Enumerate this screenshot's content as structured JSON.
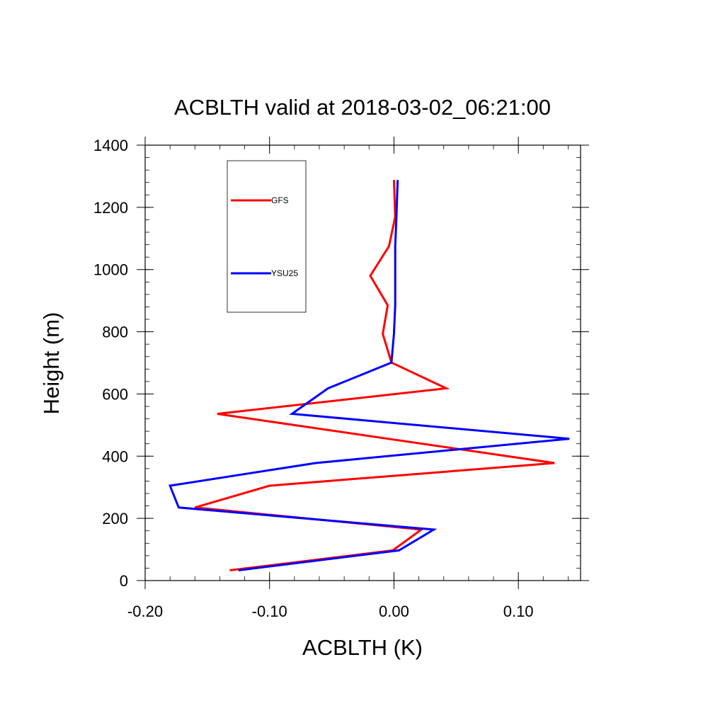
{
  "chart_data": {
    "type": "line",
    "title": "ACBLTH valid at 2018-03-02_06:21:00",
    "xlabel": "ACBLTH (K)",
    "ylabel": "Height (m)",
    "xlim": [
      -0.2,
      0.15
    ],
    "ylim": [
      0,
      1400
    ],
    "xticks": [
      -0.2,
      -0.1,
      0.0,
      0.1
    ],
    "xtick_labels": [
      "-0.20",
      "-0.10",
      "0.00",
      "0.10"
    ],
    "yticks": [
      0,
      200,
      400,
      600,
      800,
      1000,
      1200,
      1400
    ],
    "ytick_labels": [
      "0",
      "200",
      "400",
      "600",
      "800",
      "1000",
      "1200",
      "1400"
    ],
    "grid": false,
    "legend_position": "top-left",
    "series": [
      {
        "name": "GFS",
        "color": "#ff0000",
        "points": [
          [
            -0.132,
            33
          ],
          [
            -0.001,
            97
          ],
          [
            0.022,
            164
          ],
          [
            -0.16,
            235
          ],
          [
            -0.1,
            305
          ],
          [
            0.129,
            378
          ],
          [
            -0.142,
            536
          ],
          [
            0.042,
            618
          ],
          [
            -0.002,
            701
          ],
          [
            -0.009,
            793
          ],
          [
            -0.005,
            885
          ],
          [
            -0.019,
            980
          ],
          [
            -0.004,
            1075
          ],
          [
            0.001,
            1170
          ],
          [
            0.0,
            1288
          ]
        ]
      },
      {
        "name": "YSU25",
        "color": "#0000ff",
        "points": [
          [
            -0.125,
            33
          ],
          [
            0.004,
            97
          ],
          [
            0.032,
            164
          ],
          [
            -0.173,
            235
          ],
          [
            -0.18,
            305
          ],
          [
            -0.063,
            378
          ],
          [
            0.141,
            456
          ],
          [
            -0.082,
            536
          ],
          [
            -0.053,
            618
          ],
          [
            -0.002,
            701
          ],
          [
            0.0,
            793
          ],
          [
            0.001,
            885
          ],
          [
            0.001,
            980
          ],
          [
            0.001,
            1075
          ],
          [
            0.002,
            1170
          ],
          [
            0.003,
            1288
          ]
        ]
      }
    ]
  }
}
